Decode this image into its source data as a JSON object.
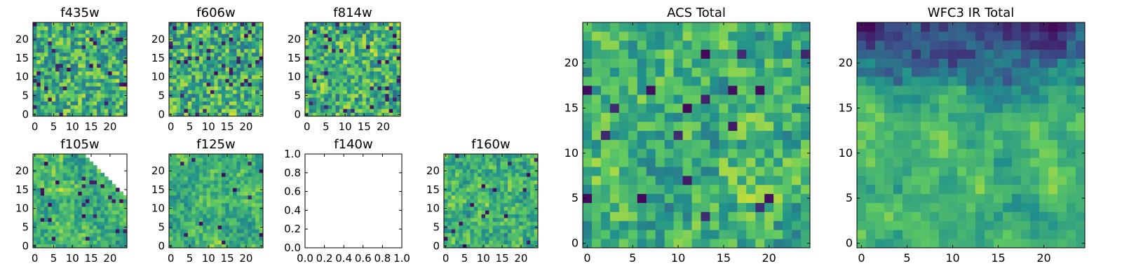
{
  "chart_data": [
    {
      "type": "heatmap",
      "title": "f435w",
      "xlim": [
        -0.5,
        24.5
      ],
      "ylim": [
        -0.5,
        24.5
      ],
      "xticks": [
        0,
        5,
        10,
        15,
        20
      ],
      "yticks": [
        0,
        5,
        10,
        15,
        20
      ],
      "seed": 11,
      "rough": 0.75,
      "lowFrac": 0.05
    },
    {
      "type": "heatmap",
      "title": "f606w",
      "xlim": [
        -0.5,
        24.5
      ],
      "ylim": [
        -0.5,
        24.5
      ],
      "xticks": [
        0,
        5,
        10,
        15,
        20
      ],
      "yticks": [
        0,
        5,
        10,
        15,
        20
      ],
      "seed": 23,
      "rough": 0.75,
      "lowFrac": 0.05
    },
    {
      "type": "heatmap",
      "title": "f814w",
      "xlim": [
        -0.5,
        24.5
      ],
      "ylim": [
        -0.5,
        24.5
      ],
      "xticks": [
        0,
        5,
        10,
        15,
        20
      ],
      "yticks": [
        0,
        5,
        10,
        15,
        20
      ],
      "seed": 37,
      "rough": 0.75,
      "lowFrac": 0.05
    },
    {
      "type": "heatmap",
      "title": "f105w",
      "xlim": [
        -0.5,
        24.5
      ],
      "ylim": [
        -0.5,
        24.5
      ],
      "xticks": [
        0,
        5,
        10,
        15,
        20
      ],
      "yticks": [
        0,
        5,
        10,
        15,
        20
      ],
      "seed": 41,
      "rough": 0.45,
      "lowFrac": 0.03,
      "mask": "top-right-corner"
    },
    {
      "type": "heatmap",
      "title": "f125w",
      "xlim": [
        -0.5,
        24.5
      ],
      "ylim": [
        -0.5,
        24.5
      ],
      "xticks": [
        0,
        5,
        10,
        15,
        20
      ],
      "yticks": [
        0,
        5,
        10,
        15,
        20
      ],
      "seed": 53,
      "rough": 0.4,
      "lowFrac": 0.02
    },
    {
      "type": "empty",
      "title": "f140w",
      "xlim": [
        0,
        1
      ],
      "ylim": [
        0,
        1
      ],
      "xticks": [
        "0.0",
        "0.2",
        "0.4",
        "0.6",
        "0.8",
        "1.0"
      ],
      "yticks": [
        "0.0",
        "0.2",
        "0.4",
        "0.6",
        "0.8",
        "1.0"
      ]
    },
    {
      "type": "heatmap",
      "title": "f160w",
      "xlim": [
        -0.5,
        24.5
      ],
      "ylim": [
        -0.5,
        24.5
      ],
      "xticks": [
        0,
        5,
        10,
        15,
        20
      ],
      "yticks": [
        0,
        5,
        10,
        15,
        20
      ],
      "seed": 67,
      "rough": 0.5,
      "lowFrac": 0.03
    },
    {
      "type": "heatmap",
      "title": "ACS Total",
      "xlim": [
        -0.5,
        24.5
      ],
      "ylim": [
        -0.5,
        24.5
      ],
      "xticks": [
        0,
        5,
        10,
        15,
        20
      ],
      "yticks": [
        0,
        5,
        10,
        15,
        20
      ],
      "seed": 79,
      "rough": 0.55,
      "lowFrac": 0.025
    },
    {
      "type": "heatmap",
      "title": "WFC3 IR Total",
      "xlim": [
        -0.5,
        24.5
      ],
      "ylim": [
        -0.5,
        24.5
      ],
      "xticks": [
        0,
        5,
        10,
        15,
        20
      ],
      "yticks": [
        0,
        5,
        10,
        15,
        20
      ],
      "seed": 97,
      "rough": 0.25,
      "lowFrac": 0.0,
      "darkTop": true
    }
  ],
  "colormap": [
    "#440154",
    "#3b528b",
    "#21918c",
    "#5ec962",
    "#fde725"
  ]
}
